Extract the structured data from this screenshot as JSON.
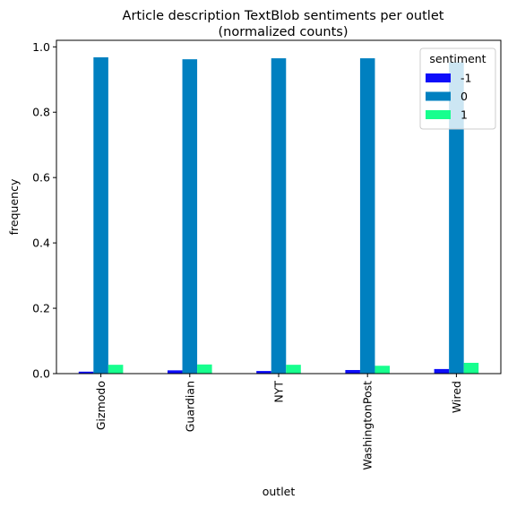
{
  "chart_data": {
    "type": "bar",
    "title": "Article description TextBlob sentiments per outlet",
    "subtitle": "(normalized counts)",
    "xlabel": "outlet",
    "ylabel": "frequency",
    "categories": [
      "Gizmodo",
      "Guardian",
      "NYT",
      "WashingtonPost",
      "Wired"
    ],
    "ylim": [
      0,
      1.02
    ],
    "yticks": [
      "0.0",
      "0.2",
      "0.4",
      "0.6",
      "0.8",
      "1.0"
    ],
    "grid": false,
    "legend": {
      "title": "sentiment",
      "position": "top-right"
    },
    "series": [
      {
        "name": "-1",
        "color": "#0d0dfa",
        "values": [
          0.006,
          0.01,
          0.008,
          0.011,
          0.014
        ]
      },
      {
        "name": "0",
        "color": "#0080c0",
        "values": [
          0.968,
          0.962,
          0.965,
          0.965,
          0.953
        ]
      },
      {
        "name": "1",
        "color": "#17ff8e",
        "values": [
          0.027,
          0.028,
          0.027,
          0.024,
          0.033
        ]
      }
    ]
  }
}
